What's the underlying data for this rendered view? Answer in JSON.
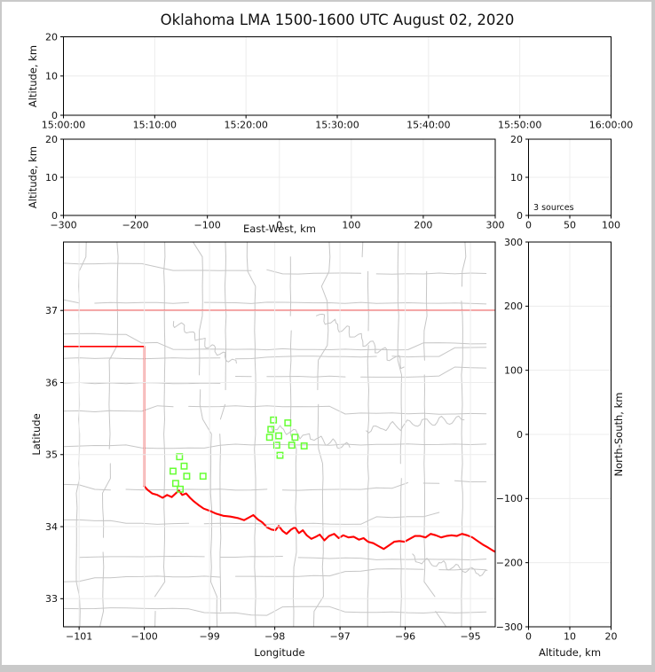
{
  "title": "Oklahoma LMA 1500-1600 UTC August 02, 2020",
  "colors": {
    "station_marker": "#66ff33",
    "state_border": "#ff0000",
    "county_lines": "#c6c6c6",
    "grid_lines": "#ececec",
    "frame": "#000000"
  },
  "chart_data": [
    {
      "name": "time_altitude",
      "type": "scatter",
      "xlabel": "",
      "ylabel": "Altitude, km",
      "xlim": [
        0,
        3600
      ],
      "ylim": [
        0,
        20
      ],
      "x_ticks": [
        {
          "v": 0,
          "label": "15:00:00"
        },
        {
          "v": 600,
          "label": "15:10:00"
        },
        {
          "v": 1200,
          "label": "15:20:00"
        },
        {
          "v": 1800,
          "label": "15:30:00"
        },
        {
          "v": 2400,
          "label": "15:40:00"
        },
        {
          "v": 3000,
          "label": "15:50:00"
        },
        {
          "v": 3600,
          "label": "16:00:00"
        }
      ],
      "y_ticks": [
        {
          "v": 0,
          "label": "0"
        },
        {
          "v": 10,
          "label": "10"
        },
        {
          "v": 20,
          "label": "20"
        }
      ],
      "points": []
    },
    {
      "name": "eastwest_altitude",
      "type": "scatter",
      "xlabel": "East-West, km",
      "ylabel": "Altitude, km",
      "xlim": [
        -300,
        300
      ],
      "ylim": [
        0,
        20
      ],
      "x_ticks": [
        {
          "v": -300,
          "label": "−300"
        },
        {
          "v": -200,
          "label": "−200"
        },
        {
          "v": -100,
          "label": "−100"
        },
        {
          "v": 0,
          "label": "0"
        },
        {
          "v": 100,
          "label": "100"
        },
        {
          "v": 200,
          "label": "200"
        },
        {
          "v": 300,
          "label": "300"
        }
      ],
      "y_ticks": [
        {
          "v": 0,
          "label": "0"
        },
        {
          "v": 10,
          "label": "10"
        },
        {
          "v": 20,
          "label": "20"
        }
      ],
      "points": []
    },
    {
      "name": "source_count_profile",
      "type": "line",
      "annotation": "3 sources",
      "xlabel": "",
      "ylabel": "",
      "xlim": [
        0,
        100
      ],
      "ylim": [
        0,
        20
      ],
      "x_ticks": [
        {
          "v": 0,
          "label": "0"
        },
        {
          "v": 50,
          "label": "50"
        },
        {
          "v": 100,
          "label": "100"
        }
      ],
      "y_ticks": [
        {
          "v": 0,
          "label": "0"
        },
        {
          "v": 10,
          "label": "10"
        },
        {
          "v": 20,
          "label": "20"
        }
      ],
      "points": []
    },
    {
      "name": "plan_view_map",
      "type": "scatter",
      "xlabel": "Longitude",
      "ylabel": "Latitude",
      "xlim": [
        -101.24,
        -94.62
      ],
      "ylim": [
        32.61,
        37.95
      ],
      "x_ticks": [
        {
          "v": -101,
          "label": "−101"
        },
        {
          "v": -100,
          "label": "−100"
        },
        {
          "v": -99,
          "label": "−99"
        },
        {
          "v": -98,
          "label": "−98"
        },
        {
          "v": -97,
          "label": "−97"
        },
        {
          "v": -96,
          "label": "−96"
        },
        {
          "v": -95,
          "label": "−95"
        }
      ],
      "y_ticks": [
        {
          "v": 33,
          "label": "33"
        },
        {
          "v": 34,
          "label": "34"
        },
        {
          "v": 35,
          "label": "35"
        },
        {
          "v": 36,
          "label": "36"
        },
        {
          "v": 37,
          "label": "37"
        }
      ],
      "stations_lonlat": [
        [
          -99.46,
          34.97
        ],
        [
          -99.39,
          34.84
        ],
        [
          -99.56,
          34.77
        ],
        [
          -99.35,
          34.7
        ],
        [
          -99.1,
          34.7
        ],
        [
          -99.52,
          34.6
        ],
        [
          -99.45,
          34.52
        ],
        [
          -98.02,
          35.48
        ],
        [
          -97.8,
          35.44
        ],
        [
          -98.06,
          35.35
        ],
        [
          -97.94,
          35.26
        ],
        [
          -98.08,
          35.24
        ],
        [
          -97.69,
          35.24
        ],
        [
          -97.97,
          35.13
        ],
        [
          -97.74,
          35.13
        ],
        [
          -97.55,
          35.12
        ],
        [
          -97.92,
          34.99
        ]
      ],
      "state_border_segments": [
        [
          [
            -101.24,
            37.0
          ],
          [
            -94.62,
            37.0
          ]
        ],
        [
          [
            -101.24,
            36.5
          ],
          [
            -100.0,
            36.5
          ],
          [
            -100.0,
            34.56
          ]
        ],
        [
          [
            -100.0,
            34.56
          ],
          [
            -99.95,
            34.51
          ],
          [
            -99.88,
            34.46
          ],
          [
            -99.8,
            34.44
          ],
          [
            -99.72,
            34.4
          ],
          [
            -99.65,
            34.44
          ],
          [
            -99.58,
            34.41
          ],
          [
            -99.52,
            34.46
          ],
          [
            -99.47,
            34.5
          ],
          [
            -99.42,
            34.44
          ],
          [
            -99.36,
            34.46
          ],
          [
            -99.3,
            34.4
          ],
          [
            -99.24,
            34.35
          ],
          [
            -99.17,
            34.3
          ],
          [
            -99.09,
            34.25
          ],
          [
            -99.0,
            34.22
          ],
          [
            -98.9,
            34.18
          ],
          [
            -98.79,
            34.15
          ],
          [
            -98.68,
            34.14
          ],
          [
            -98.57,
            34.12
          ],
          [
            -98.47,
            34.09
          ],
          [
            -98.39,
            34.13
          ],
          [
            -98.33,
            34.16
          ],
          [
            -98.26,
            34.1
          ],
          [
            -98.19,
            34.06
          ],
          [
            -98.12,
            33.99
          ],
          [
            -98.05,
            33.96
          ],
          [
            -97.99,
            33.95
          ],
          [
            -97.94,
            34.01
          ],
          [
            -97.88,
            33.94
          ],
          [
            -97.82,
            33.9
          ],
          [
            -97.75,
            33.96
          ],
          [
            -97.69,
            33.99
          ],
          [
            -97.63,
            33.91
          ],
          [
            -97.57,
            33.95
          ],
          [
            -97.51,
            33.88
          ],
          [
            -97.44,
            33.83
          ],
          [
            -97.37,
            33.86
          ],
          [
            -97.31,
            33.89
          ],
          [
            -97.24,
            33.81
          ],
          [
            -97.17,
            33.87
          ],
          [
            -97.09,
            33.9
          ],
          [
            -97.02,
            33.84
          ],
          [
            -96.95,
            33.88
          ],
          [
            -96.87,
            33.85
          ],
          [
            -96.79,
            33.86
          ],
          [
            -96.71,
            33.82
          ],
          [
            -96.64,
            33.84
          ],
          [
            -96.57,
            33.79
          ],
          [
            -96.49,
            33.77
          ],
          [
            -96.41,
            33.73
          ],
          [
            -96.33,
            33.69
          ],
          [
            -96.25,
            33.74
          ],
          [
            -96.17,
            33.79
          ],
          [
            -96.09,
            33.8
          ],
          [
            -96.01,
            33.79
          ],
          [
            -95.93,
            33.83
          ],
          [
            -95.85,
            33.87
          ],
          [
            -95.77,
            33.87
          ],
          [
            -95.69,
            33.85
          ],
          [
            -95.61,
            33.9
          ],
          [
            -95.53,
            33.88
          ],
          [
            -95.45,
            33.85
          ],
          [
            -95.37,
            33.87
          ],
          [
            -95.29,
            33.88
          ],
          [
            -95.21,
            33.87
          ],
          [
            -95.13,
            33.9
          ],
          [
            -95.05,
            33.88
          ],
          [
            -94.97,
            33.85
          ],
          [
            -94.89,
            33.8
          ],
          [
            -94.81,
            33.75
          ],
          [
            -94.73,
            33.71
          ],
          [
            -94.66,
            33.67
          ],
          [
            -94.62,
            33.65
          ]
        ]
      ]
    },
    {
      "name": "northsouth_altitude",
      "type": "scatter",
      "xlabel": "Altitude, km",
      "ylabel": "North-South, km",
      "xlim": [
        0,
        20
      ],
      "ylim": [
        -300,
        300
      ],
      "x_ticks": [
        {
          "v": 0,
          "label": "0"
        },
        {
          "v": 10,
          "label": "10"
        },
        {
          "v": 20,
          "label": "20"
        }
      ],
      "y_ticks": [
        {
          "v": -300,
          "label": "−300"
        },
        {
          "v": -200,
          "label": "−200"
        },
        {
          "v": -100,
          "label": "−100"
        },
        {
          "v": 0,
          "label": "0"
        },
        {
          "v": 100,
          "label": "100"
        },
        {
          "v": 200,
          "label": "200"
        },
        {
          "v": 300,
          "label": "300"
        }
      ],
      "points": []
    }
  ]
}
